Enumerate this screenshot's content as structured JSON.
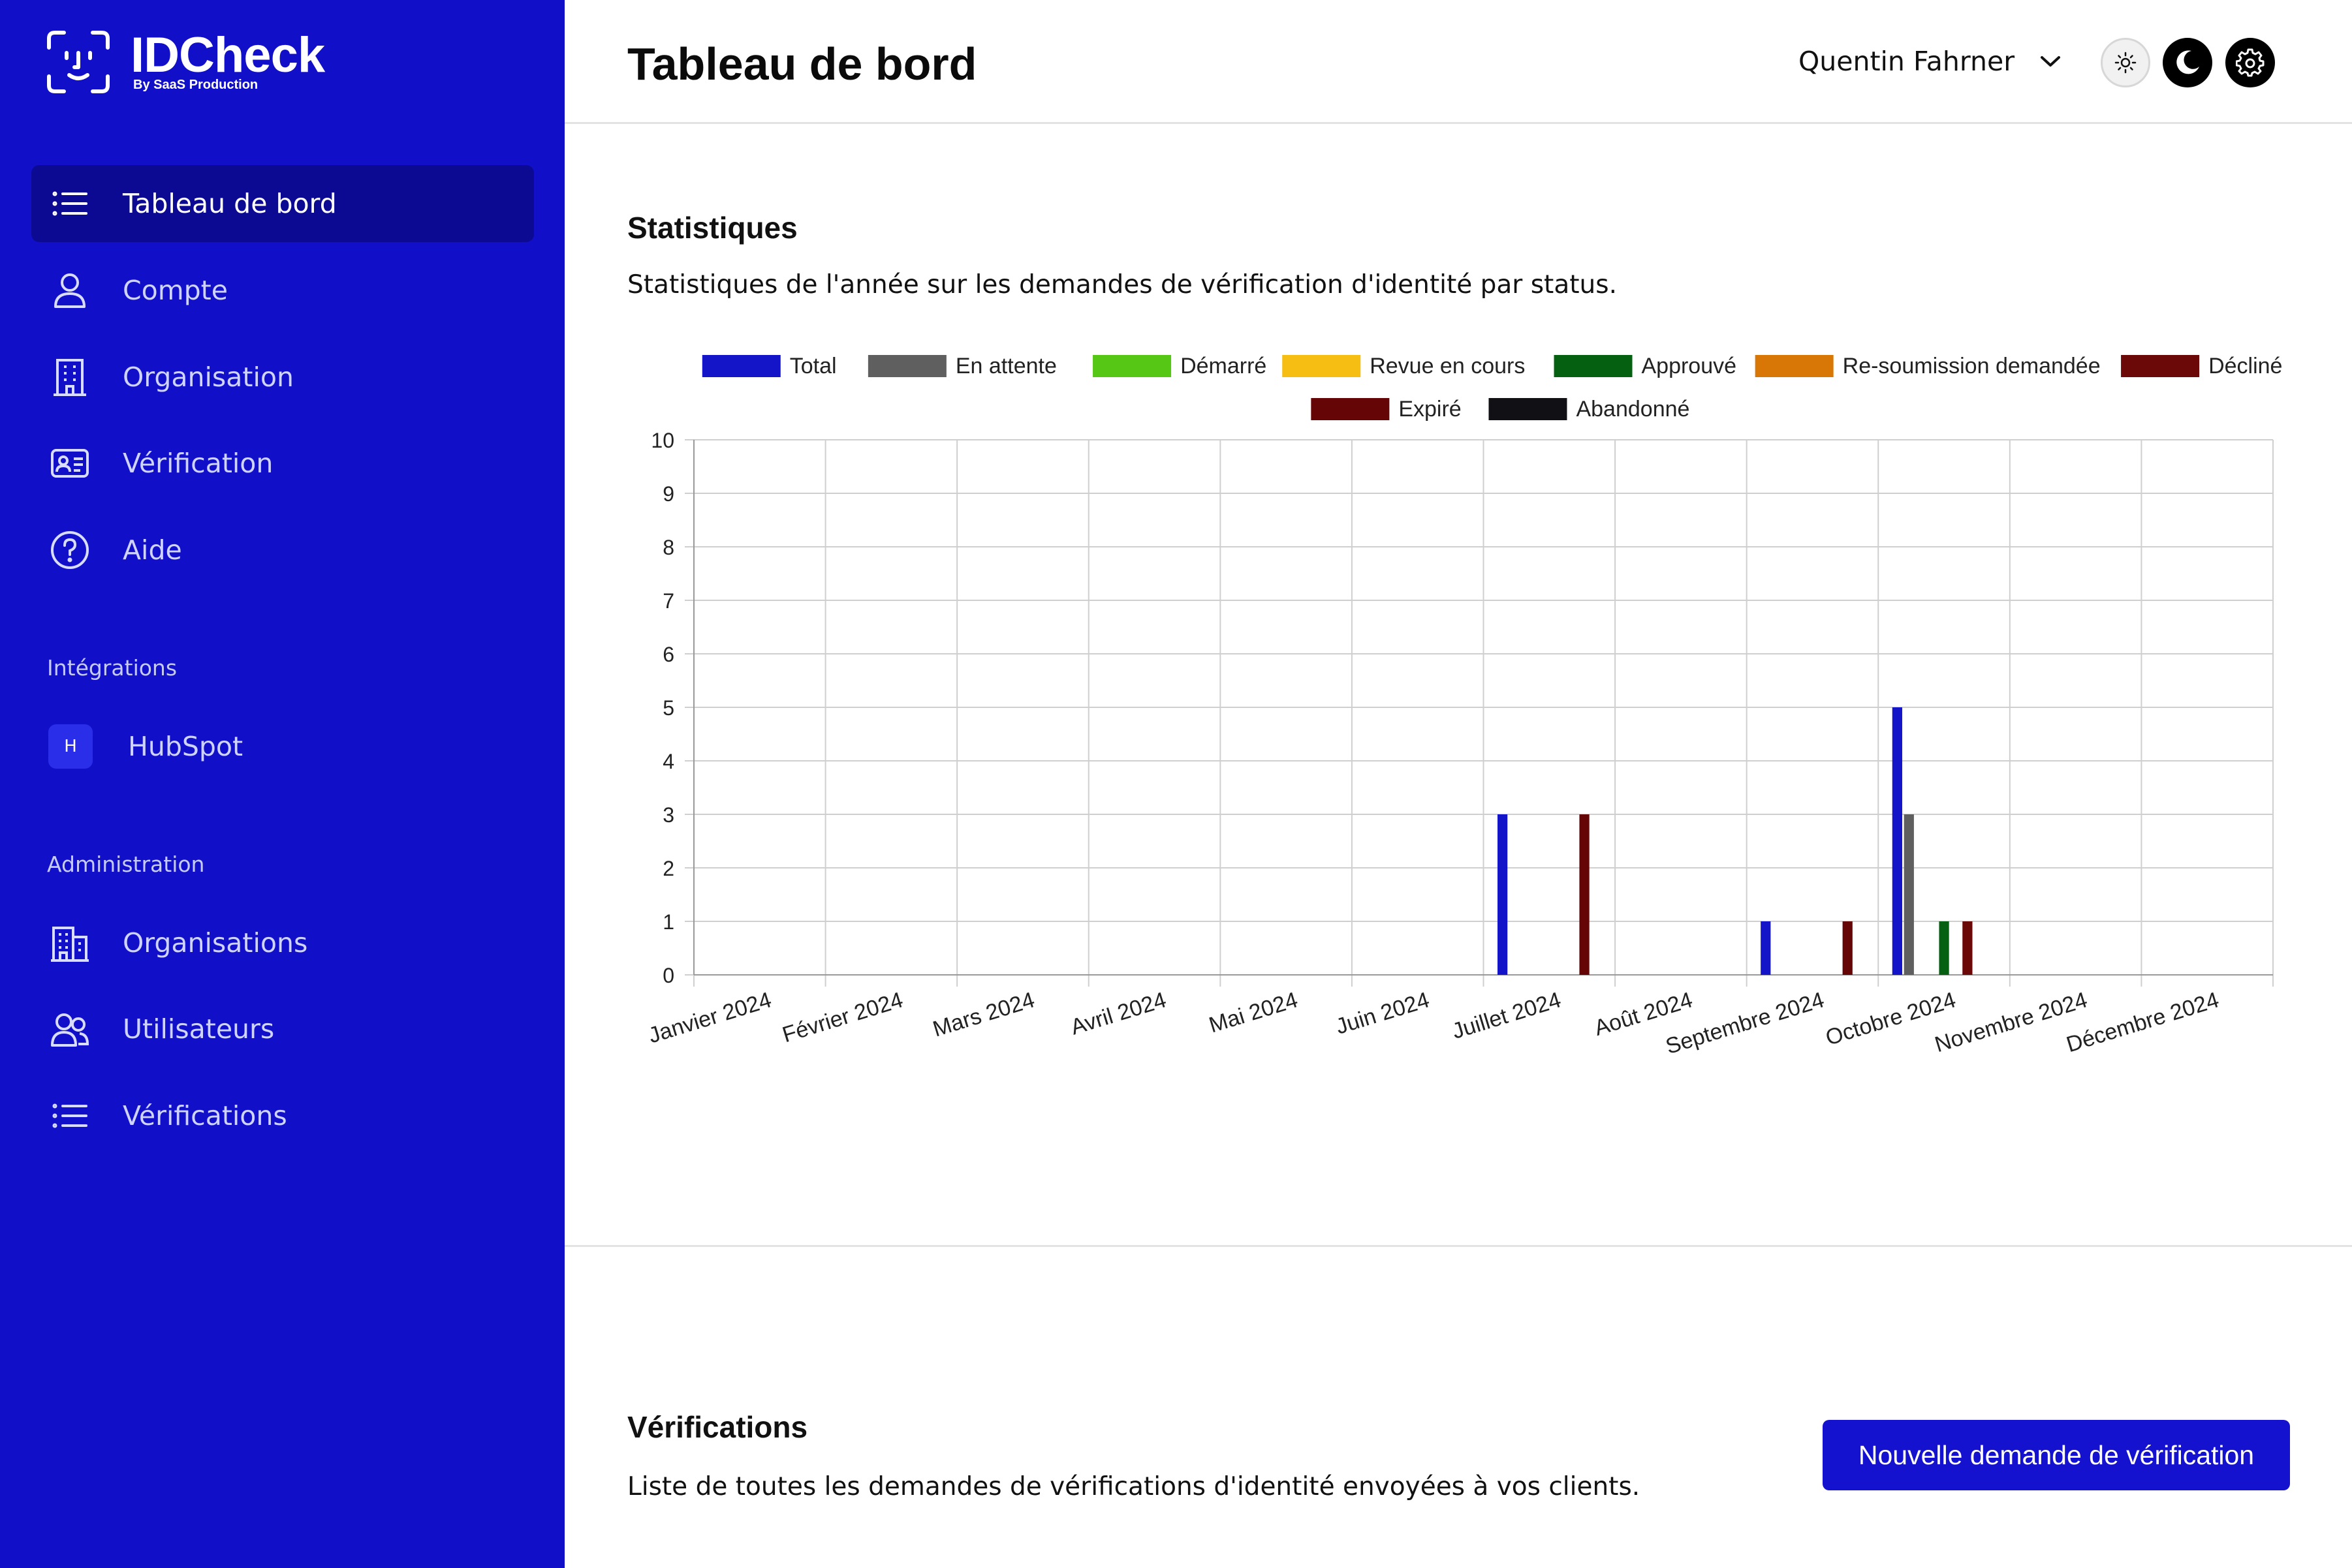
{
  "app": {
    "name": "IDCheck",
    "tagline": "By SaaS Production"
  },
  "sidebar": {
    "items": [
      {
        "label": "Tableau de bord",
        "icon": "list-icon",
        "active": true
      },
      {
        "label": "Compte",
        "icon": "user-icon"
      },
      {
        "label": "Organisation",
        "icon": "building-icon"
      },
      {
        "label": "Vérification",
        "icon": "id-card-icon"
      },
      {
        "label": "Aide",
        "icon": "help-circle-icon"
      }
    ],
    "integrations_title": "Intégrations",
    "integrations": [
      {
        "label": "HubSpot",
        "badge": "H"
      }
    ],
    "admin_title": "Administration",
    "admin_items": [
      {
        "label": "Organisations",
        "icon": "buildings-icon"
      },
      {
        "label": "Utilisateurs",
        "icon": "users-icon"
      },
      {
        "label": "Vérifications",
        "icon": "list-icon"
      }
    ]
  },
  "header": {
    "title": "Tableau de bord",
    "user_name": "Quentin Fahrner"
  },
  "stats": {
    "title": "Statistiques",
    "description": "Statistiques de l'année sur les demandes de vérification d'identité par status."
  },
  "verifications": {
    "title": "Vérifications",
    "description": "Liste de toutes les demandes de vérifications d'identité envoyées à vos clients.",
    "new_button": "Nouvelle demande de vérification"
  },
  "colors": {
    "sidebar_bg": "#1110c8",
    "sidebar_active": "#0c0a93",
    "primary_button": "#1512cf"
  },
  "chart_data": {
    "type": "bar",
    "categories": [
      "Janvier 2024",
      "Février 2024",
      "Mars 2024",
      "Avril 2024",
      "Mai 2024",
      "Juin 2024",
      "Juillet 2024",
      "Août 2024",
      "Septembre 2024",
      "Octobre 2024",
      "Novembre 2024",
      "Décembre 2024"
    ],
    "ylim": [
      0,
      10
    ],
    "yticks": [
      0,
      1,
      2,
      3,
      4,
      5,
      6,
      7,
      8,
      9,
      10
    ],
    "grid": true,
    "legend_position": "top",
    "series": [
      {
        "name": "Total",
        "color": "#1414c8",
        "values": [
          0,
          0,
          0,
          0,
          0,
          0,
          3,
          0,
          1,
          5,
          0,
          0
        ]
      },
      {
        "name": "En attente",
        "color": "#5f5f5f",
        "values": [
          0,
          0,
          0,
          0,
          0,
          0,
          0,
          0,
          0,
          3,
          0,
          0
        ]
      },
      {
        "name": "Démarré",
        "color": "#55c714",
        "values": [
          0,
          0,
          0,
          0,
          0,
          0,
          0,
          0,
          0,
          0,
          0,
          0
        ]
      },
      {
        "name": "Revue en cours",
        "color": "#f6bd12",
        "values": [
          0,
          0,
          0,
          0,
          0,
          0,
          0,
          0,
          0,
          0,
          0,
          0
        ]
      },
      {
        "name": "Approuvé",
        "color": "#066012",
        "values": [
          0,
          0,
          0,
          0,
          0,
          0,
          0,
          0,
          0,
          1,
          0,
          0
        ]
      },
      {
        "name": "Re-soumission demandée",
        "color": "#d97706",
        "values": [
          0,
          0,
          0,
          0,
          0,
          0,
          0,
          0,
          0,
          0,
          0,
          0
        ]
      },
      {
        "name": "Décliné",
        "color": "#6b0808",
        "values": [
          0,
          0,
          0,
          0,
          0,
          0,
          0,
          0,
          0,
          1,
          0,
          0
        ]
      },
      {
        "name": "Expiré",
        "color": "#650505",
        "values": [
          0,
          0,
          0,
          0,
          0,
          0,
          3,
          0,
          1,
          0,
          0,
          0
        ]
      },
      {
        "name": "Abandonné",
        "color": "#111115",
        "values": [
          0,
          0,
          0,
          0,
          0,
          0,
          0,
          0,
          0,
          0,
          0,
          0
        ]
      }
    ]
  }
}
